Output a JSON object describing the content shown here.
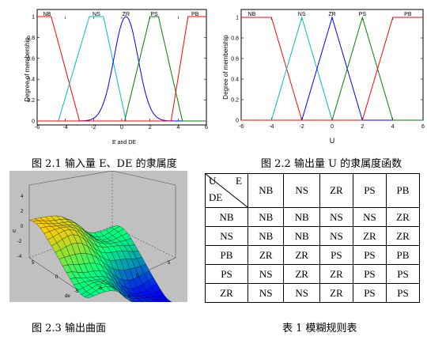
{
  "figures": {
    "fig1": {
      "caption": "图 2.1 输入量 E、DE 的隶属度",
      "ylabel": "Degree of membership",
      "xlabel": "E and DE",
      "labels": [
        "NB",
        "NS",
        "ZR",
        "PS",
        "PB"
      ],
      "xticks": [
        "-6",
        "-4",
        "-2",
        "0",
        "2",
        "4",
        "6"
      ],
      "yticks": [
        "0",
        "0.2",
        "0.4",
        "0.6",
        "0.8",
        "1"
      ]
    },
    "fig2": {
      "caption": "图 2.2 输出量 U 的隶属度函数",
      "ylabel": "Degree of membership",
      "xlabel": "U",
      "labels": [
        "NB",
        "NS",
        "ZR",
        "PS",
        "PB"
      ],
      "xticks": [
        "-6",
        "-4",
        "-2",
        "0",
        "2",
        "4",
        "6"
      ],
      "yticks": [
        "0",
        "0.2",
        "0.4",
        "0.6",
        "0.8",
        "1"
      ]
    },
    "fig3": {
      "caption": "图 2.3 输出曲面",
      "zticks": [
        "4",
        "2",
        "0",
        "-2",
        "-4"
      ],
      "zlabel": "u",
      "xlabel": "de",
      "ylabel": "e",
      "xticks": [
        "5",
        "0",
        "-5"
      ],
      "yticks": [
        "-5",
        "0",
        "5"
      ]
    }
  },
  "table": {
    "caption": "表 1 模糊规则表",
    "corner": {
      "top_left": "U",
      "top_right": "E",
      "bottom": "DE"
    },
    "col_headers": [
      "NB",
      "NS",
      "ZR",
      "PS",
      "PB"
    ],
    "rows": [
      {
        "header": "NB",
        "cells": [
          "NB",
          "NB",
          "NS",
          "NS",
          "ZR"
        ]
      },
      {
        "header": "NS",
        "cells": [
          "NB",
          "NB",
          "NS",
          "ZR",
          "ZR"
        ]
      },
      {
        "header": "PB",
        "cells": [
          "ZR",
          "ZR",
          "PS",
          "PS",
          "PB"
        ]
      },
      {
        "header": "PS",
        "cells": [
          "NS",
          "ZR",
          "ZR",
          "PS",
          "PS"
        ]
      },
      {
        "header": "ZR",
        "cells": [
          "NS",
          "NS",
          "ZR",
          "PS",
          "PS"
        ]
      }
    ]
  },
  "colors": {
    "nb": "#ff0000",
    "ns": "#00bfbf",
    "zr": "#0000ff",
    "ps": "#008000",
    "pb": "#ff0000",
    "axis_bg": "#ffffff",
    "plot3d_bg": "#c0c0c0"
  }
}
